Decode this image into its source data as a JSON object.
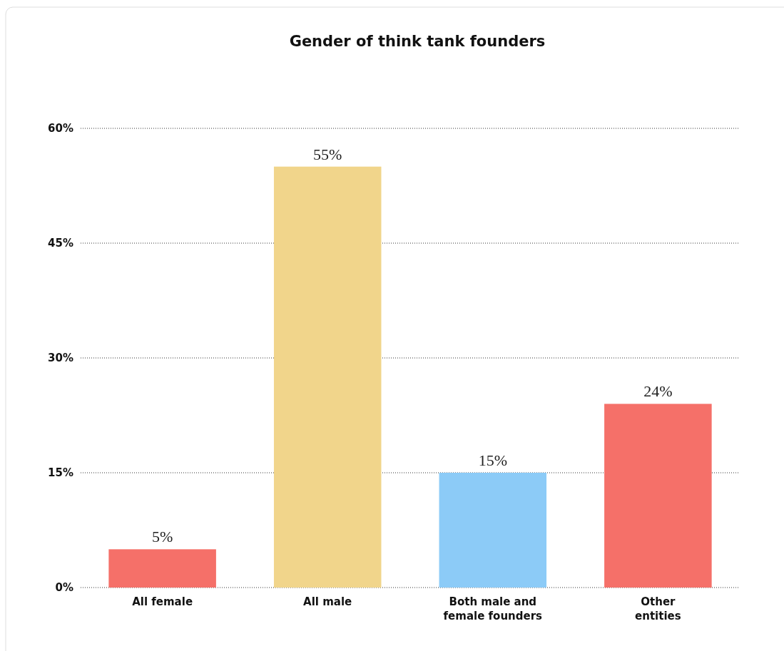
{
  "chart_data": {
    "type": "bar",
    "title": "Gender of think tank founders",
    "categories": [
      "All female",
      "All male",
      "Both male and\nfemale founders",
      "Other\nentities"
    ],
    "values": [
      5,
      55,
      15,
      24
    ],
    "colors": [
      "#f57069",
      "#f1d58b",
      "#8ccbf7",
      "#f57069"
    ],
    "value_labels": [
      "5%",
      "55%",
      "15%",
      "24%"
    ],
    "ylim": [
      0,
      60
    ],
    "yticks": [
      {
        "value": 0,
        "label": "0%"
      },
      {
        "value": 15,
        "label": "15%"
      },
      {
        "value": 30,
        "label": "30%"
      },
      {
        "value": 45,
        "label": "45%"
      },
      {
        "value": 60,
        "label": "60%"
      }
    ],
    "grid": "y"
  }
}
